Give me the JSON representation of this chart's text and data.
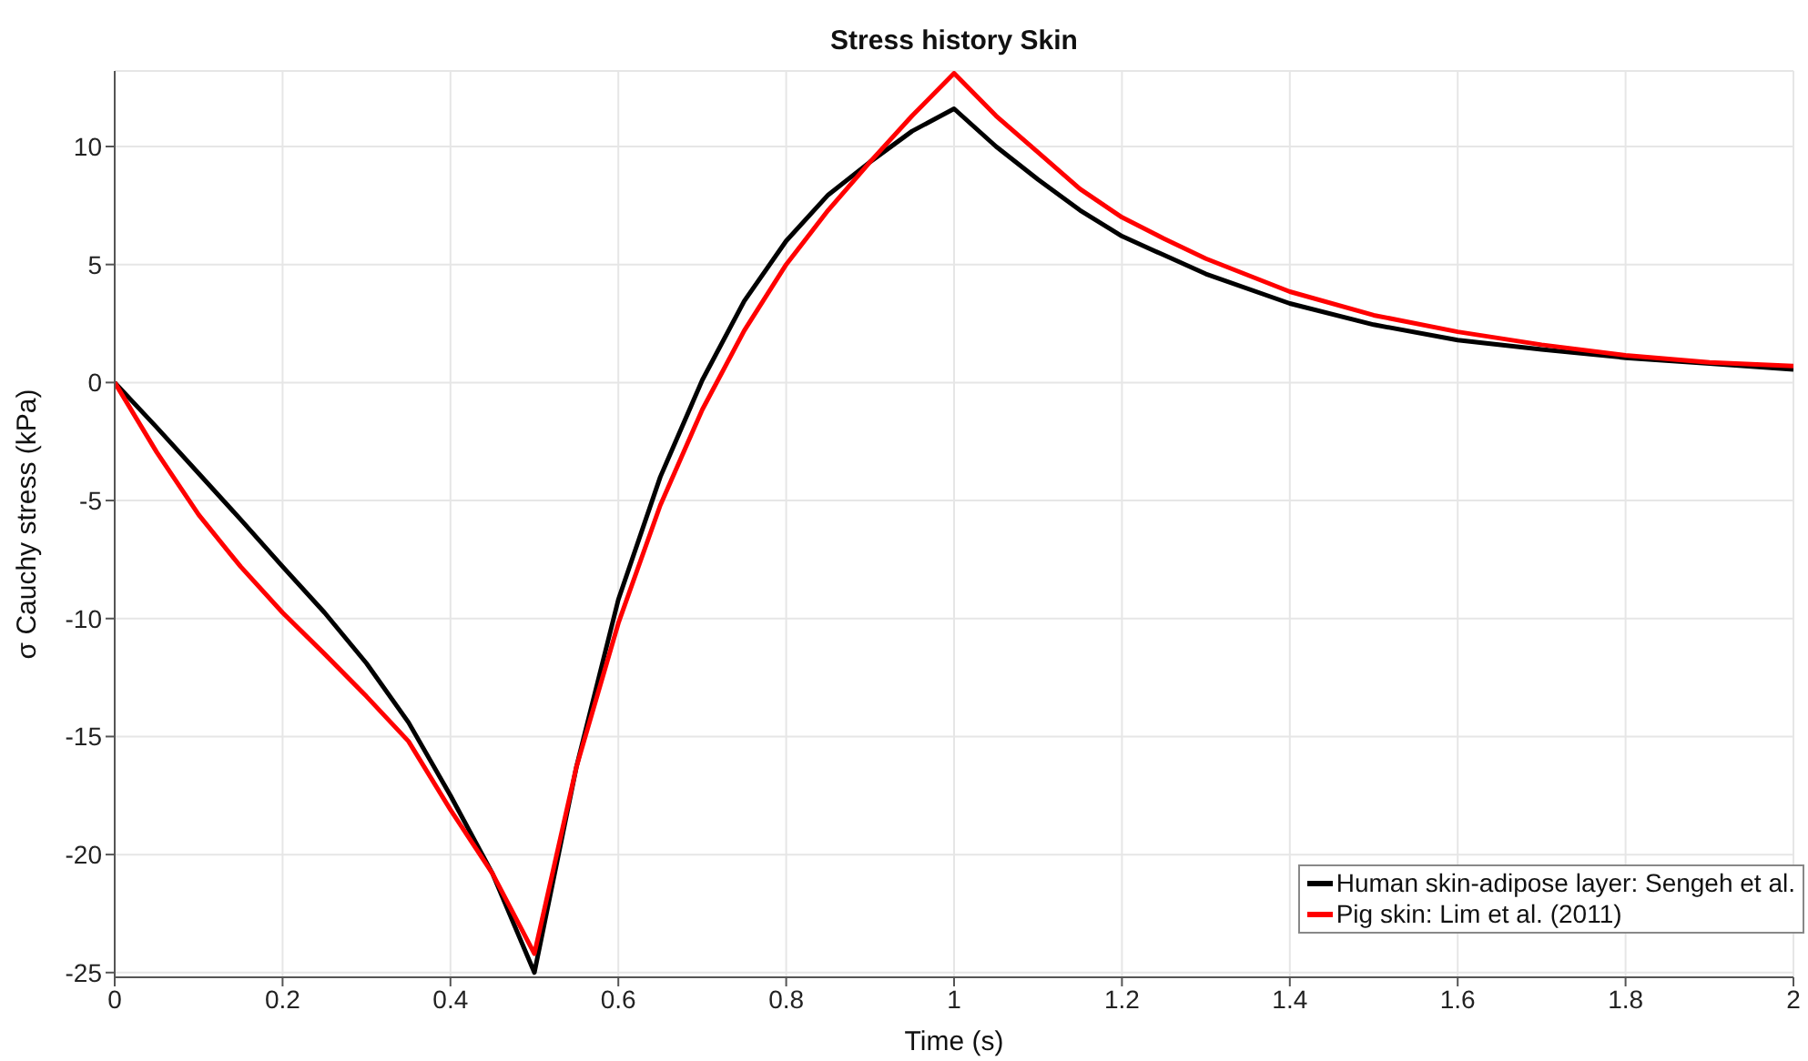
{
  "chart_data": {
    "type": "line",
    "title": "Stress history Skin",
    "xlabel": "Time (s)",
    "ylabel": "σ Cauchy stress (kPa)",
    "x": [
      0,
      0.05,
      0.1,
      0.15,
      0.2,
      0.25,
      0.3,
      0.35,
      0.4,
      0.45,
      0.5,
      0.55,
      0.6,
      0.65,
      0.7,
      0.75,
      0.8,
      0.85,
      0.9,
      0.95,
      1.0,
      1.05,
      1.1,
      1.15,
      1.2,
      1.25,
      1.3,
      1.4,
      1.5,
      1.6,
      1.7,
      1.8,
      1.9,
      2.0
    ],
    "series": [
      {
        "name": "Human skin-adipose layer: Sengeh et al.",
        "color": "#000000",
        "values": [
          0,
          -1.9,
          -3.85,
          -5.8,
          -7.8,
          -9.75,
          -11.9,
          -14.4,
          -17.5,
          -20.8,
          -25.0,
          -16.3,
          -9.2,
          -4.0,
          0.1,
          3.45,
          6.0,
          7.95,
          9.35,
          10.65,
          11.6,
          10.0,
          8.6,
          7.3,
          6.2,
          5.4,
          4.6,
          3.35,
          2.45,
          1.8,
          1.4,
          1.05,
          0.8,
          0.55
        ]
      },
      {
        "name": "Pig skin: Lim et al. (2011)",
        "color": "#ff0000",
        "values": [
          0,
          -2.95,
          -5.6,
          -7.8,
          -9.75,
          -11.5,
          -13.3,
          -15.2,
          -18.1,
          -20.8,
          -24.2,
          -16.3,
          -10.2,
          -5.2,
          -1.15,
          2.2,
          5.0,
          7.3,
          9.35,
          11.3,
          13.1,
          11.3,
          9.75,
          8.2,
          7.0,
          6.1,
          5.25,
          3.85,
          2.85,
          2.15,
          1.6,
          1.15,
          0.85,
          0.7
        ]
      }
    ],
    "xlim": [
      0,
      2
    ],
    "xticks": [
      0,
      0.2,
      0.4,
      0.6,
      0.8,
      1,
      1.2,
      1.4,
      1.6,
      1.8,
      2
    ],
    "ylim": [
      -25.2,
      13.2
    ],
    "yticks": [
      -25,
      -20,
      -15,
      -10,
      -5,
      0,
      5,
      10
    ],
    "grid": true,
    "legend": "bottom right",
    "marker": "none",
    "line_style": "solid"
  }
}
